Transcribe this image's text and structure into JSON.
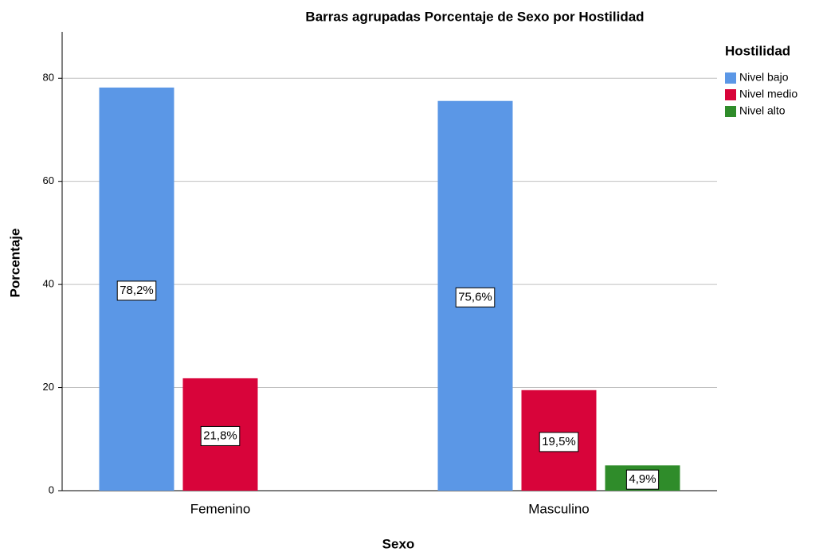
{
  "chart_data": {
    "type": "bar",
    "title": "Barras agrupadas Porcentaje de Sexo por Hostilidad",
    "x_label": "Sexo",
    "y_label": "Porcentaje",
    "legend_title": "Hostilidad",
    "legend": "right",
    "categories": [
      "Femenino",
      "Masculino"
    ],
    "series": [
      {
        "name": "Nivel bajo",
        "color": "#5b97e6",
        "values": [
          78.2,
          75.6
        ],
        "value_labels": [
          "78,2%",
          "75,6%"
        ]
      },
      {
        "name": "Nivel medio",
        "color": "#d8043a",
        "values": [
          21.8,
          19.5
        ],
        "value_labels": [
          "21,8%",
          "19,5%"
        ]
      },
      {
        "name": "Nivel alto",
        "color": "#2f8c2a",
        "values": [
          null,
          4.9
        ],
        "value_labels": [
          null,
          "4,9%"
        ]
      }
    ],
    "ylim": [
      0,
      89
    ],
    "yticks": [
      0,
      20,
      40,
      60,
      80
    ],
    "grid": true
  }
}
